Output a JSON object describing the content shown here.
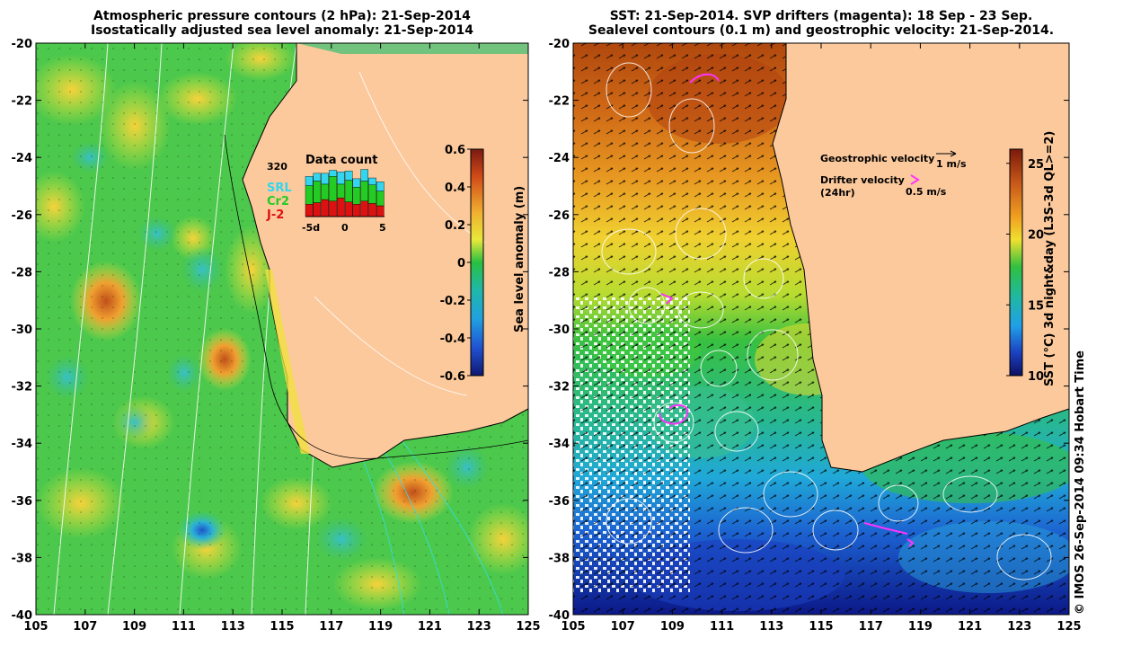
{
  "left_panel": {
    "title_line1": "Atmospheric pressure contours (2 hPa): 21-Sep-2014",
    "title_line2": "Isostatically adjusted sea level anomaly: 21-Sep-2014",
    "colorbar": {
      "label": "Sea level anomaly (m)",
      "ticks": [
        "0.6",
        "0.4",
        "0.2",
        "0",
        "-0.2",
        "-0.4",
        "-0.6"
      ]
    },
    "data_count": {
      "title": "Data count",
      "max_label": "320",
      "x_ticks": [
        "-5d",
        "0",
        "5"
      ],
      "legend": [
        {
          "label": "SRL",
          "color": "#33d6ee"
        },
        {
          "label": "Cr2",
          "color": "#22cc22"
        },
        {
          "label": "J-2",
          "color": "#dd1111"
        }
      ],
      "bars": [
        {
          "srl": 60,
          "cr2": 120,
          "j2": 80
        },
        {
          "srl": 50,
          "cr2": 140,
          "j2": 90
        },
        {
          "srl": 70,
          "cr2": 100,
          "j2": 110
        },
        {
          "srl": 40,
          "cr2": 160,
          "j2": 100
        },
        {
          "srl": 80,
          "cr2": 90,
          "j2": 120
        },
        {
          "srl": 60,
          "cr2": 140,
          "j2": 95
        },
        {
          "srl": 55,
          "cr2": 110,
          "j2": 80
        },
        {
          "srl": 75,
          "cr2": 130,
          "j2": 100
        },
        {
          "srl": 45,
          "cr2": 120,
          "j2": 85
        },
        {
          "srl": 60,
          "cr2": 95,
          "j2": 70
        }
      ]
    }
  },
  "right_panel": {
    "title_line1": "SST: 21-Sep-2014. SVP drifters (magenta): 18 Sep - 23 Sep.",
    "title_line2": "Sealevel contours (0.1 m) and geostrophic velocity: 21-Sep-2014.",
    "colorbar": {
      "label": "SST (°C) 3d night&day (L3S-3d QL>=2)",
      "ticks": [
        "25",
        "20",
        "15",
        "10"
      ]
    },
    "legend": {
      "geostrophic_label": "Geostrophic velocity",
      "geostrophic_scale": "1 m/s",
      "drifter_label_1": "Drifter velocity",
      "drifter_label_2": "(24hr)",
      "drifter_scale": "0.5 m/s"
    }
  },
  "axes": {
    "lat_ticks": [
      "-20",
      "-22",
      "-24",
      "-26",
      "-28",
      "-30",
      "-32",
      "-34",
      "-36",
      "-38",
      "-40"
    ],
    "lon_ticks": [
      "105",
      "107",
      "109",
      "111",
      "113",
      "115",
      "117",
      "119",
      "121",
      "123",
      "125"
    ]
  },
  "credit": "© IMOS 26-Sep-2014 09:34 Hobart Time",
  "colors": {
    "land": "#fcc99c",
    "drifter": "#ff33ff",
    "sla_positive": "#f0c020",
    "sla_negative": "#22aadd",
    "sst_warm": "#c04a10",
    "sst_cold": "#1b2fb0"
  }
}
